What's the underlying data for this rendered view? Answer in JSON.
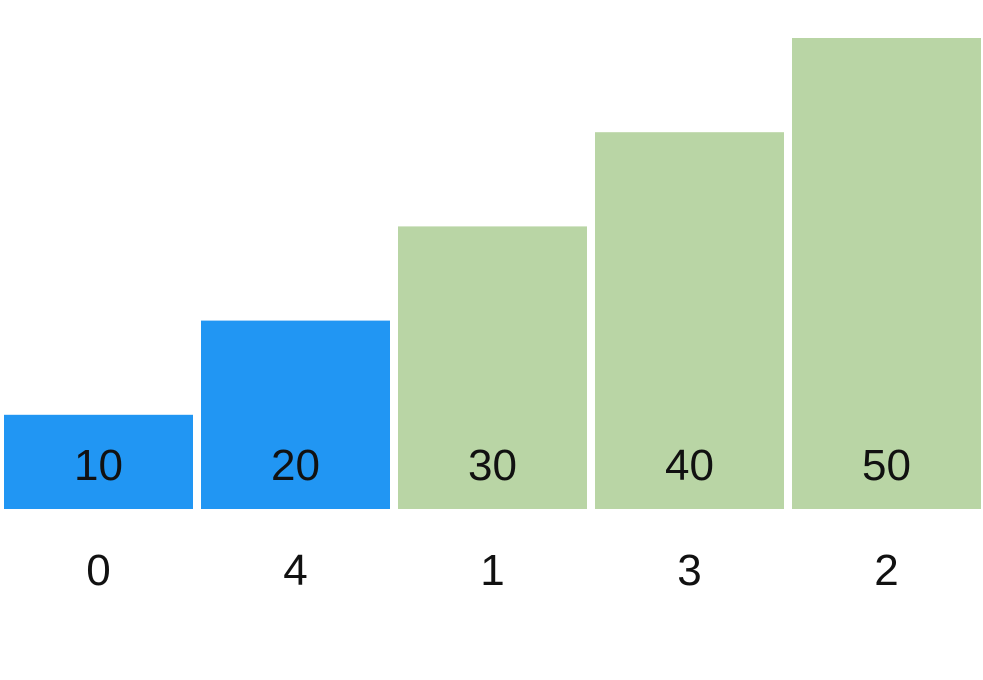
{
  "chart_data": {
    "type": "bar",
    "title": "",
    "xlabel": "",
    "ylabel": "",
    "ylim": [
      0,
      50
    ],
    "grid": false,
    "legend": "none",
    "colors": {
      "highlight": "#2196F3",
      "normal": "#B9D5A5",
      "text": "#111111"
    },
    "bars": [
      {
        "value": 10,
        "index_label": "0",
        "state": "highlight"
      },
      {
        "value": 20,
        "index_label": "4",
        "state": "highlight"
      },
      {
        "value": 30,
        "index_label": "1",
        "state": "normal"
      },
      {
        "value": 40,
        "index_label": "3",
        "state": "normal"
      },
      {
        "value": 50,
        "index_label": "2",
        "state": "normal"
      }
    ]
  }
}
